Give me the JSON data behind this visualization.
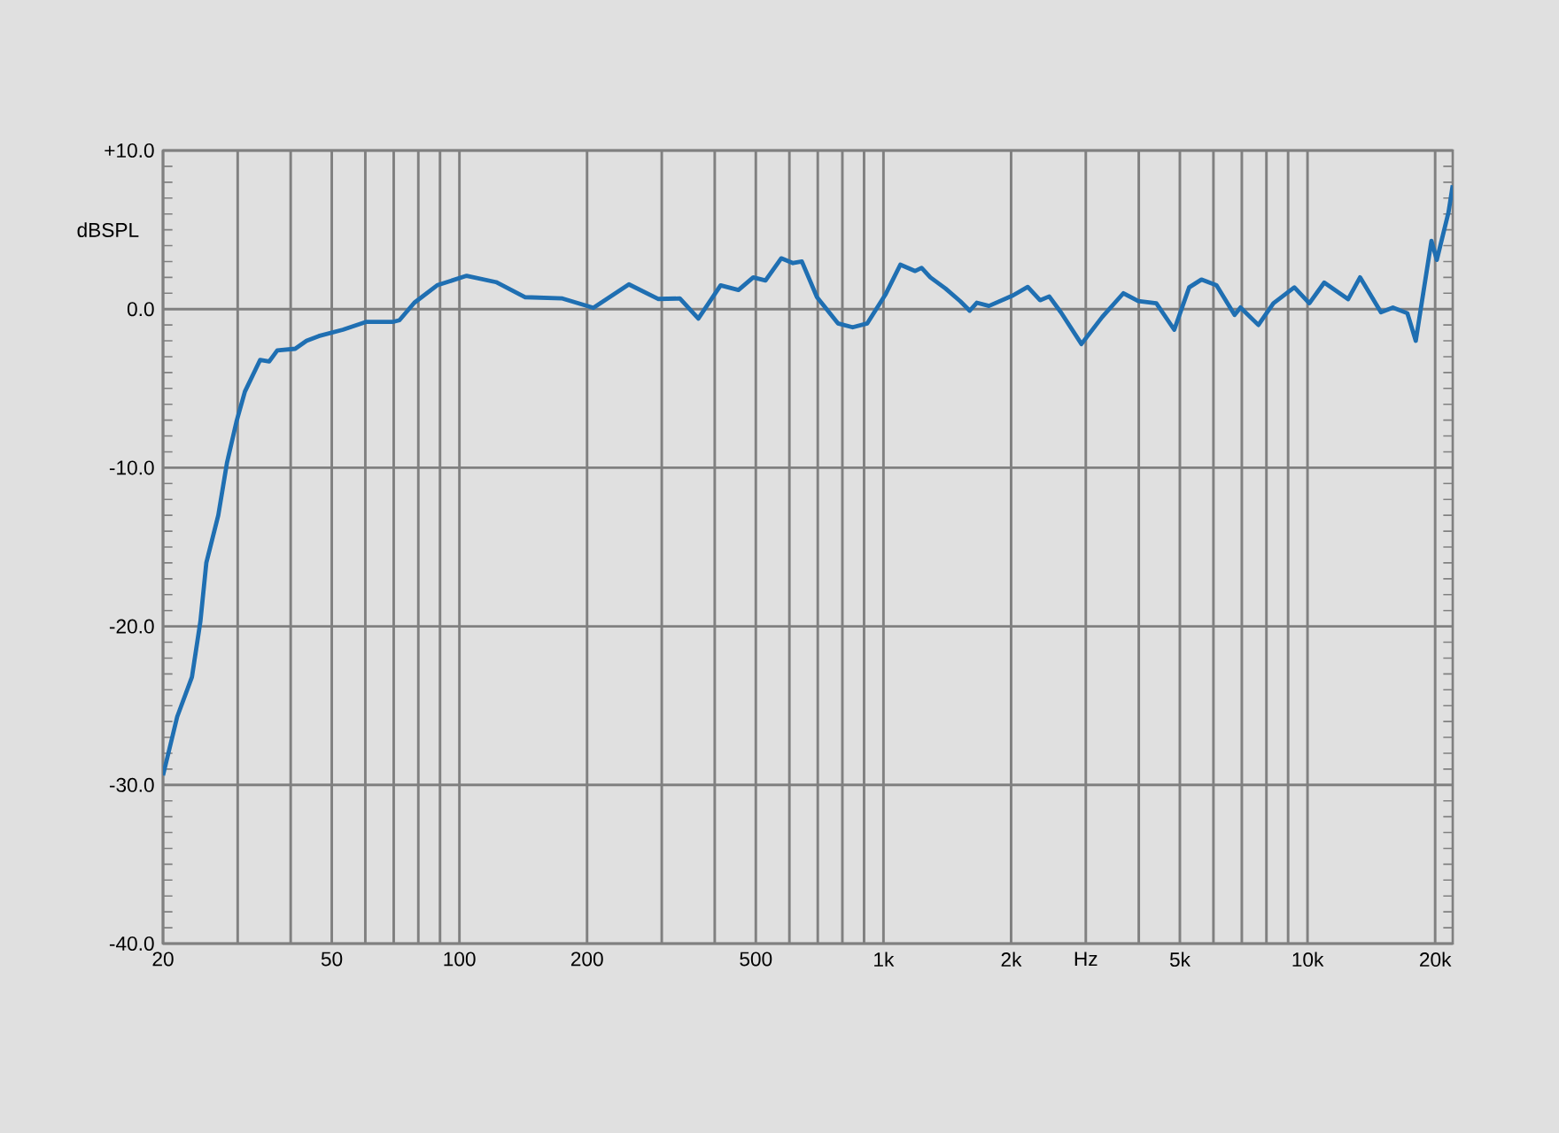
{
  "chart_data": {
    "type": "line",
    "ylabel": "dBSPL",
    "log": "x",
    "grid": true,
    "marker": "none",
    "line_style": "solid",
    "xlim": [
      20,
      22000
    ],
    "ylim": [
      -40,
      10
    ],
    "xticks": [
      20,
      {
        "value": 30,
        "label": null
      },
      {
        "value": 40,
        "label": null
      },
      50,
      {
        "value": 60,
        "label": null
      },
      {
        "value": 70,
        "label": null
      },
      {
        "value": 80,
        "label": null
      },
      {
        "value": 90,
        "label": null
      },
      100,
      200,
      {
        "value": 300,
        "label": null
      },
      {
        "value": 400,
        "label": null
      },
      500,
      {
        "value": 600,
        "label": null
      },
      {
        "value": 700,
        "label": null
      },
      {
        "value": 800,
        "label": null
      },
      {
        "value": 900,
        "label": null
      },
      {
        "value": 1000,
        "label": "1k"
      },
      {
        "value": 2000,
        "label": "2k"
      },
      {
        "value": 3000,
        "label": "Hz"
      },
      {
        "value": 4000,
        "label": null
      },
      {
        "value": 5000,
        "label": "5k"
      },
      {
        "value": 6000,
        "label": null
      },
      {
        "value": 7000,
        "label": null
      },
      {
        "value": 8000,
        "label": null
      },
      {
        "value": 9000,
        "label": null
      },
      {
        "value": 10000,
        "label": "10k"
      },
      {
        "value": 20000,
        "label": "20k"
      }
    ],
    "yticks": [
      {
        "value": -40,
        "label": "-40.0"
      },
      {
        "value": -30,
        "label": "-30.0"
      },
      {
        "value": -20,
        "label": "-20.0"
      },
      {
        "value": -10,
        "label": "-10.0"
      },
      {
        "value": 0,
        "label": "0.0"
      },
      {
        "value": 10,
        "label": "+10.0"
      }
    ],
    "series": [
      {
        "color": "#1f6fb2",
        "x": [
          20,
          21.6,
          23.4,
          24.5,
          25.3,
          27.0,
          28.3,
          29.8,
          31.2,
          33.9,
          35.6,
          37.2,
          41,
          43.6,
          46.6,
          53.1,
          60.4,
          69.9,
          72.2,
          78.3,
          88.6,
          104,
          122,
          143,
          175,
          207,
          251,
          294,
          331,
          366,
          413,
          455,
          493,
          527,
          574,
          612,
          642,
          697,
          781,
          846,
          916,
          1010,
          1096,
          1188,
          1230,
          1290,
          1400,
          1517,
          1597,
          1660,
          1773,
          2020,
          2189,
          2340,
          2460,
          2620,
          2930,
          3280,
          3680,
          3990,
          4400,
          4850,
          5260,
          5620,
          6100,
          6730,
          6950,
          7660,
          8310,
          9310,
          10100,
          10950,
          12470,
          13300,
          14900,
          15900,
          17200,
          18000,
          19600,
          20180,
          21500,
          22000
        ],
        "values": [
          -29.4,
          -25.7,
          -23.2,
          -19.7,
          -16.0,
          -13.0,
          -9.7,
          -7.1,
          -5.2,
          -3.2,
          -3.3,
          -2.6,
          -2.5,
          -2.0,
          -1.7,
          -1.3,
          -0.8,
          -0.8,
          -0.7,
          0.4,
          1.5,
          2.1,
          1.7,
          0.75,
          0.67,
          0.08,
          1.56,
          0.64,
          0.67,
          -0.6,
          1.5,
          1.2,
          2.0,
          1.8,
          3.2,
          2.9,
          3.0,
          0.75,
          -0.9,
          -1.15,
          -0.9,
          0.9,
          2.8,
          2.4,
          2.6,
          2.0,
          1.3,
          0.5,
          -0.1,
          0.4,
          0.2,
          0.86,
          1.4,
          0.56,
          0.8,
          -0.2,
          -2.2,
          -0.5,
          1.0,
          0.5,
          0.37,
          -1.3,
          1.37,
          1.86,
          1.5,
          -0.37,
          0.1,
          -1.0,
          0.37,
          1.37,
          0.37,
          1.67,
          0.63,
          2.0,
          -0.2,
          0.1,
          -0.26,
          -2.0,
          4.3,
          3.1,
          6.1,
          7.8
        ]
      }
    ]
  }
}
